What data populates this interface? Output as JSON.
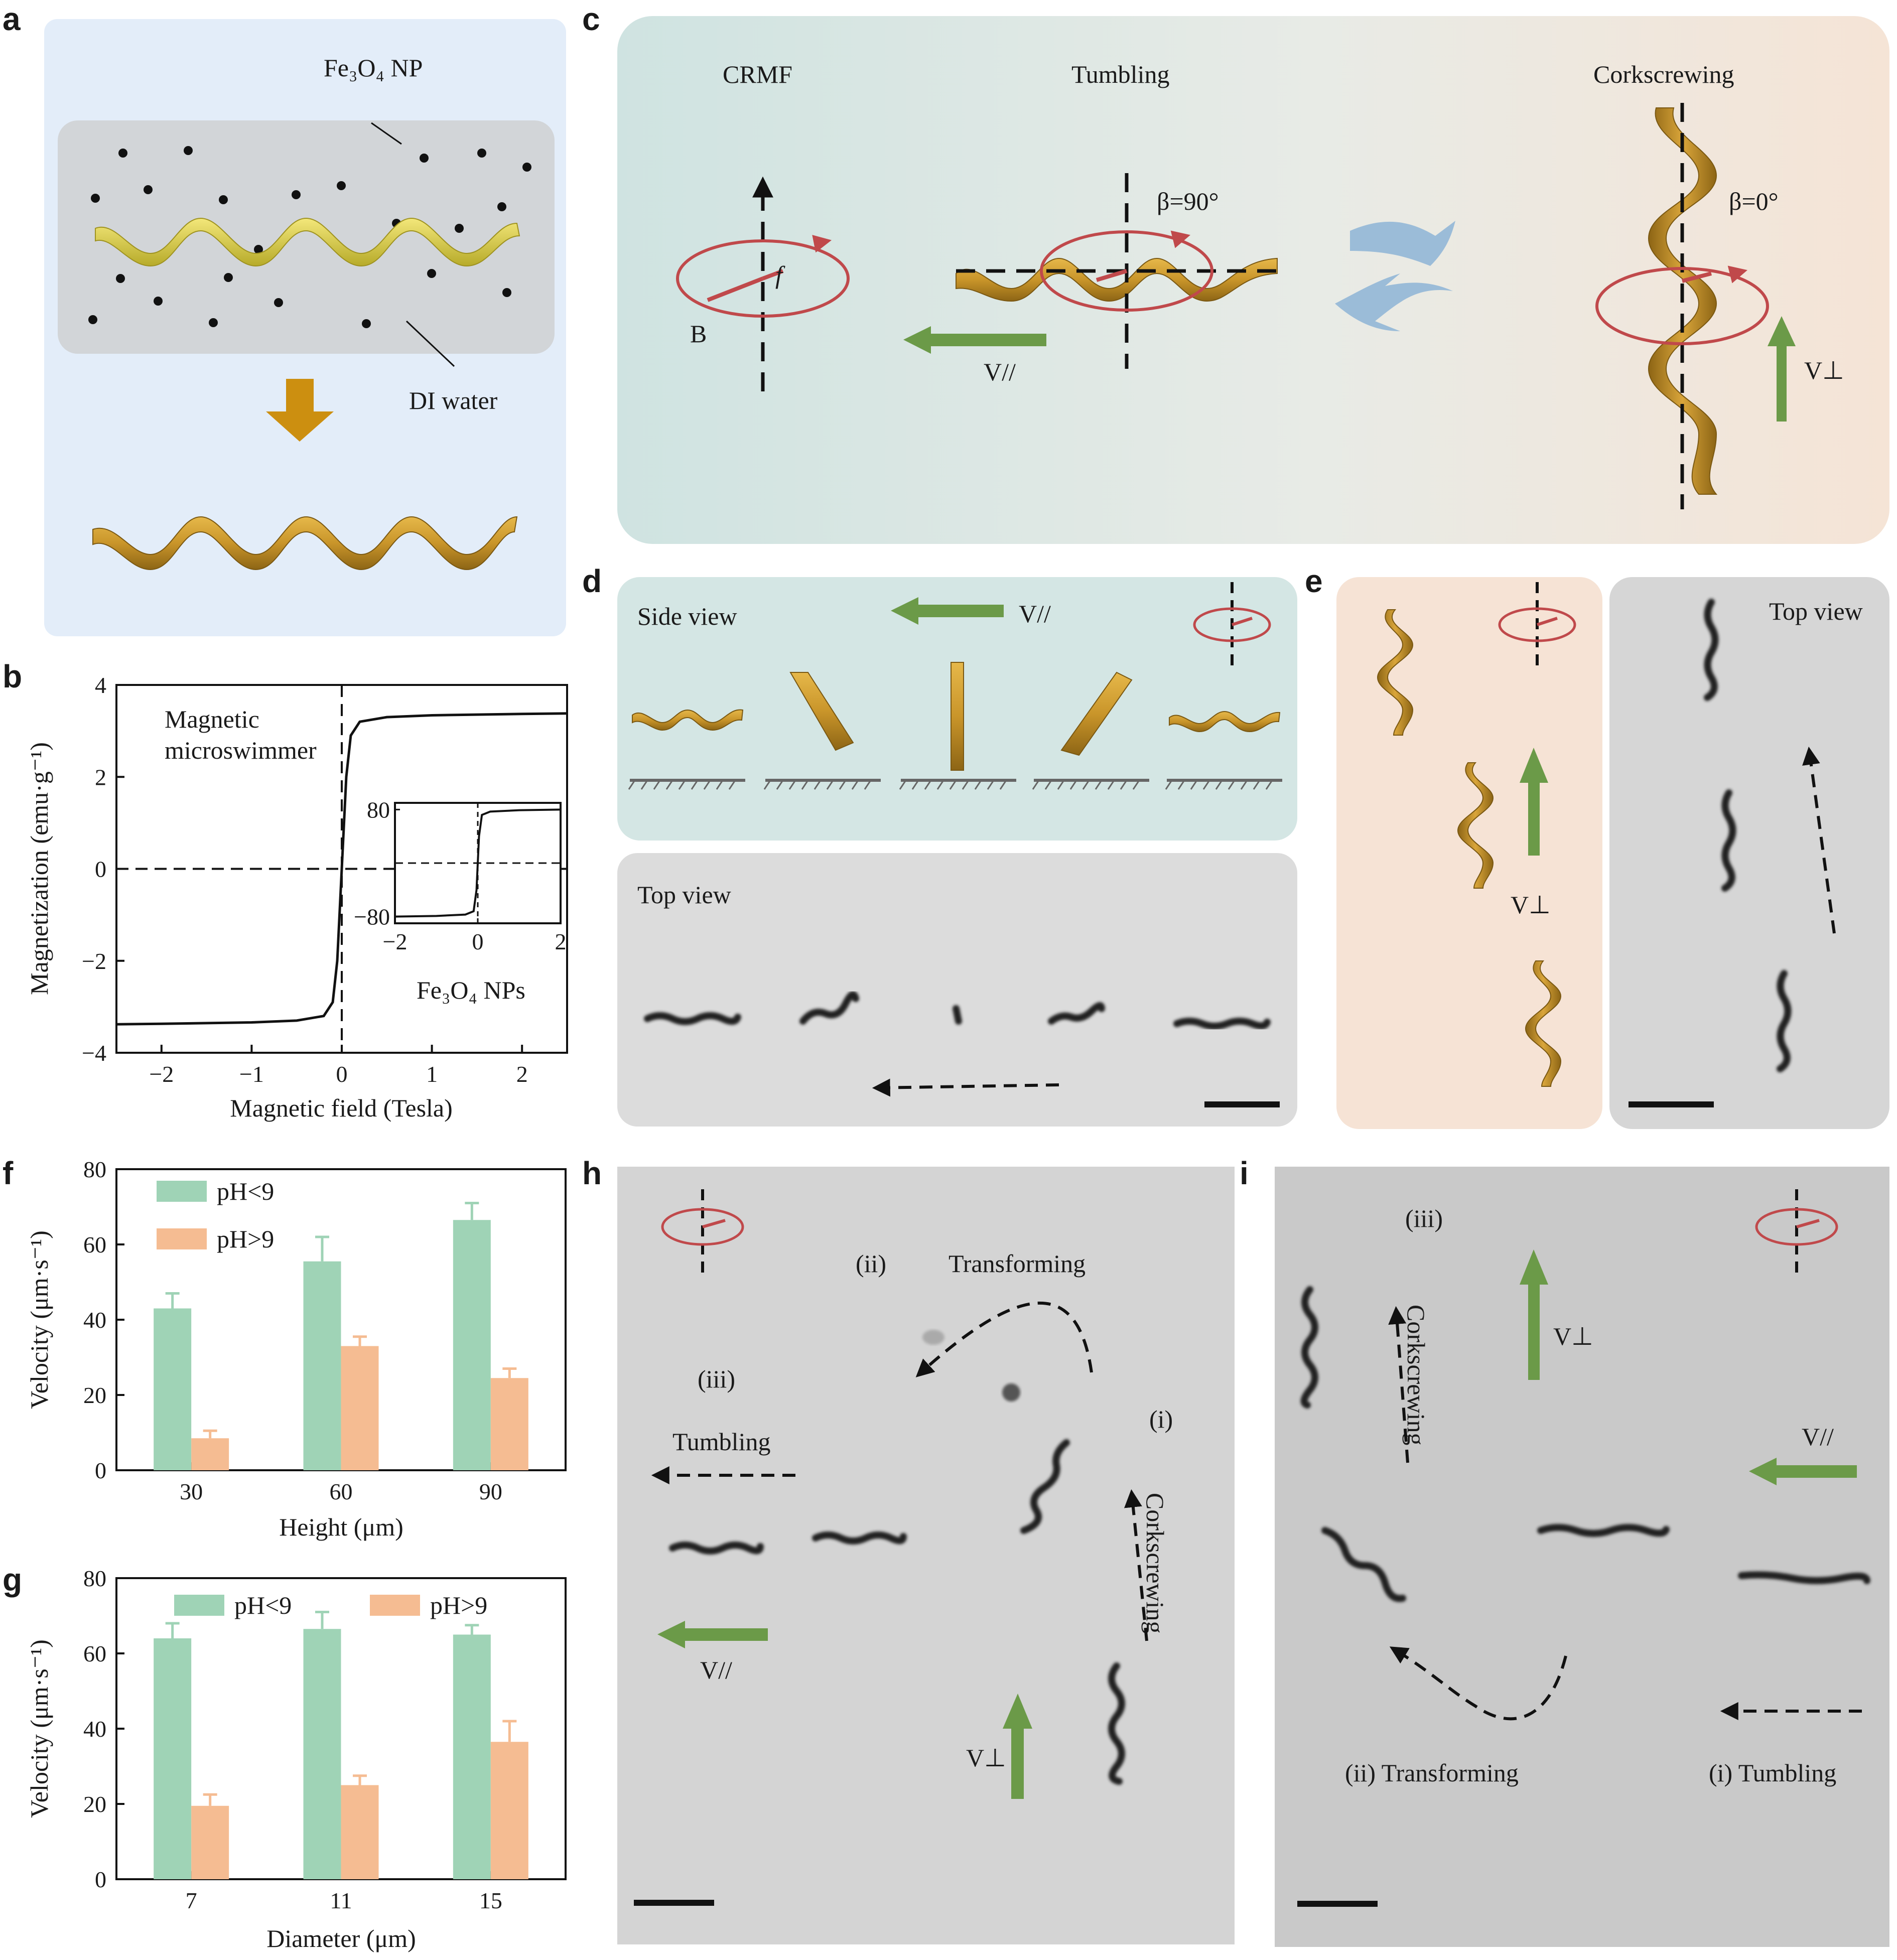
{
  "panel_labels": {
    "a": "a",
    "b": "b",
    "c": "c",
    "d": "d",
    "e": "e",
    "f": "f",
    "g": "g",
    "h": "h",
    "i": "i"
  },
  "panel_a": {
    "np_label": "Fe₃O₄ NP",
    "water_label": "DI water"
  },
  "panel_c": {
    "crmf": "CRMF",
    "tumbling": "Tumbling",
    "corkscrewing": "Corkscrewing",
    "beta90": "β=90°",
    "beta0": "β=0°",
    "f": "f",
    "B": "B",
    "v_par": "V//",
    "v_perp": "V⊥"
  },
  "panel_d": {
    "side_view": "Side view",
    "top_view": "Top view",
    "v_par": "V//"
  },
  "panel_e": {
    "top_view": "Top view",
    "v_perp": "V⊥"
  },
  "panel_h": {
    "ii": "(ii)",
    "transforming": "Transforming",
    "iii": "(iii)",
    "i": "(i)",
    "tumbling": "Tumbling",
    "corkscrewing": "Corkscrewing",
    "v_par": "V//",
    "v_perp": "V⊥"
  },
  "panel_i": {
    "iii": "(iii)",
    "corkscrewing": "Corkscrewing",
    "v_perp": "V⊥",
    "v_par": "V//",
    "ii_transforming": "(ii) Transforming",
    "i_tumbling": "(i) Tumbling"
  },
  "chart_data": [
    {
      "id": "b",
      "type": "line",
      "xlabel": "Magnetic field (Tesla)",
      "ylabel": "Magnetization (emu·g⁻¹)",
      "xlim": [
        -2.5,
        2.5
      ],
      "ylim": [
        -4,
        4
      ],
      "xticks": [
        "−2",
        "−1",
        "0",
        "1",
        "2"
      ],
      "yticks": [
        "−4",
        "−2",
        "0",
        "2",
        "4"
      ],
      "annotation": "Magnetic microswimmer",
      "series": [
        {
          "x": [
            -2.5,
            -2.0,
            -1.0,
            -0.5,
            -0.2,
            -0.1,
            -0.05,
            0,
            0.05,
            0.1,
            0.2,
            0.5,
            1.0,
            2.0,
            2.5
          ],
          "y": [
            -3.38,
            -3.37,
            -3.34,
            -3.3,
            -3.2,
            -2.9,
            -2.0,
            0,
            2.0,
            2.9,
            3.2,
            3.3,
            3.34,
            3.37,
            3.38
          ]
        }
      ],
      "inset": {
        "label": "Fe₃O₄ NPs",
        "xlim": [
          -2,
          2
        ],
        "ylim": [
          -90,
          90
        ],
        "xticks": [
          "−2",
          "0",
          "2"
        ],
        "yticks": [
          "80",
          "−80"
        ],
        "series": [
          {
            "x": [
              -2,
              -1,
              -0.3,
              -0.1,
              -0.03,
              0,
              0.03,
              0.1,
              0.3,
              1,
              2
            ],
            "y": [
              -80,
              -79,
              -77,
              -72,
              -40,
              0,
              40,
              72,
              77,
              79,
              80
            ]
          }
        ]
      }
    },
    {
      "id": "f",
      "type": "bar",
      "xlabel": "Height (μm)",
      "ylabel": "Velocity (μm·s⁻¹)",
      "ylim": [
        0,
        80
      ],
      "yticks": [
        "0",
        "20",
        "40",
        "60",
        "80"
      ],
      "categories": [
        "30",
        "60",
        "90"
      ],
      "series": [
        {
          "name": "pH<9",
          "values": [
            43,
            55.5,
            66.5
          ],
          "errors": [
            4,
            6.5,
            4.5
          ],
          "color": "#9fd3b6"
        },
        {
          "name": "pH>9",
          "values": [
            8.5,
            33,
            24.5
          ],
          "errors": [
            2,
            2.5,
            2.5
          ],
          "color": "#f5bc92"
        }
      ]
    },
    {
      "id": "g",
      "type": "bar",
      "xlabel": "Diameter (μm)",
      "ylabel": "Velocity (μm·s⁻¹)",
      "ylim": [
        0,
        80
      ],
      "yticks": [
        "0",
        "20",
        "40",
        "60",
        "80"
      ],
      "categories": [
        "7",
        "11",
        "15"
      ],
      "series": [
        {
          "name": "pH<9",
          "values": [
            64,
            66.5,
            65
          ],
          "errors": [
            4,
            4.5,
            2.5
          ],
          "color": "#9fd3b6"
        },
        {
          "name": "pH>9",
          "values": [
            19.5,
            25,
            36.5
          ],
          "errors": [
            3,
            2.5,
            5.5
          ],
          "color": "#f5bc92"
        }
      ]
    }
  ]
}
